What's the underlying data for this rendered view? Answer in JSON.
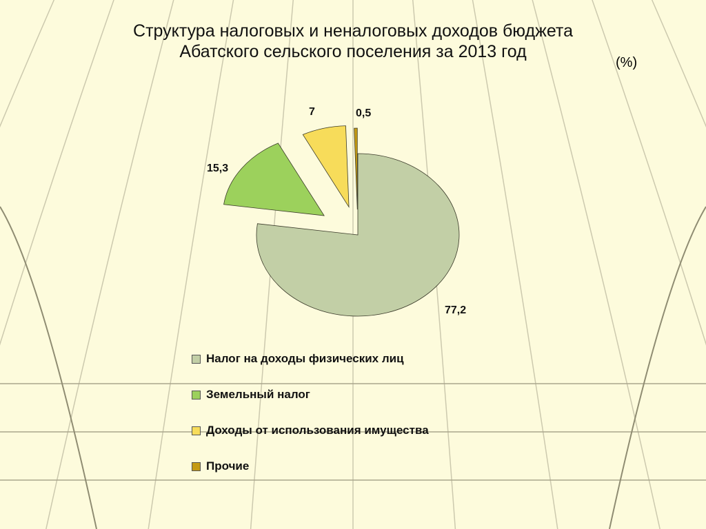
{
  "title_line1": "Структура налоговых и неналоговых доходов бюджета",
  "title_line2": "Абатского сельского поселения за 2013 год",
  "unit_label": "(%)",
  "chart_data": {
    "type": "pie",
    "title": "Структура налоговых и неналоговых доходов бюджета Абатского сельского поселения за 2013 год",
    "unit": "(%)",
    "exploded": true,
    "legend_position": "bottom",
    "slices": [
      {
        "name": "Налог на доходы физических лиц",
        "value": 77.2,
        "label": "77,2",
        "color": "#c2cfa6"
      },
      {
        "name": "Земельный налог",
        "value": 15.3,
        "label": "15,3",
        "color": "#9cd15c"
      },
      {
        "name": "Доходы от использования имущества",
        "value": 7,
        "label": "7",
        "color": "#f7dc5a"
      },
      {
        "name": "Прочие",
        "value": 0.5,
        "label": "0,5",
        "color": "#c49a14"
      }
    ]
  }
}
